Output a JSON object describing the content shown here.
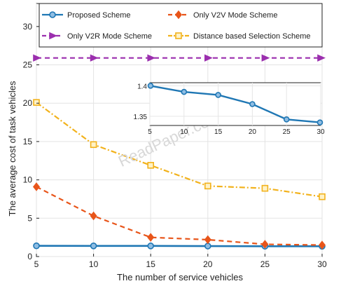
{
  "chart_data": {
    "type": "line",
    "title": "",
    "xlabel": "The number of service vehicles",
    "ylabel": "The average cost of task vehicles",
    "x": [
      5,
      10,
      15,
      20,
      25,
      30
    ],
    "xlim": [
      5,
      30
    ],
    "ylim": [
      0,
      33
    ],
    "x_ticks": [
      5,
      10,
      15,
      20,
      25,
      30
    ],
    "y_ticks": [
      0,
      5,
      10,
      15,
      20,
      25,
      30
    ],
    "grid": true,
    "legend": "top, two columns",
    "series": [
      {
        "name": "Proposed Scheme",
        "color": "#1f77b4",
        "marker": "circle",
        "style": "solid",
        "values": [
          1.4,
          1.39,
          1.385,
          1.37,
          1.345,
          1.34
        ]
      },
      {
        "name": "Only V2V Mode Scheme",
        "color": "#e8551a",
        "marker": "diamond",
        "style": "dashed",
        "values": [
          9.1,
          5.3,
          2.5,
          2.2,
          1.6,
          1.5
        ]
      },
      {
        "name": "Only V2R Mode Scheme",
        "color": "#9b2fae",
        "marker": "triangle-right",
        "style": "dashed",
        "values": [
          25.9,
          25.9,
          25.9,
          25.9,
          25.9,
          25.9
        ]
      },
      {
        "name": "Distance based Selection Scheme",
        "color": "#f2b21c",
        "marker": "square",
        "style": "dash-dot",
        "values": [
          20.1,
          14.6,
          11.9,
          9.2,
          8.9,
          7.8
        ]
      }
    ],
    "inset": {
      "series": "Proposed Scheme",
      "x_ticks": [
        5,
        10,
        15,
        20,
        25,
        30
      ],
      "y_tick_labels": [
        "1.4",
        "1.35"
      ],
      "y_tick_values": [
        1.4,
        1.35
      ],
      "ylim": [
        1.335,
        1.405
      ],
      "xlim": [
        5,
        30
      ]
    }
  },
  "watermark": "ReadPaper.com"
}
